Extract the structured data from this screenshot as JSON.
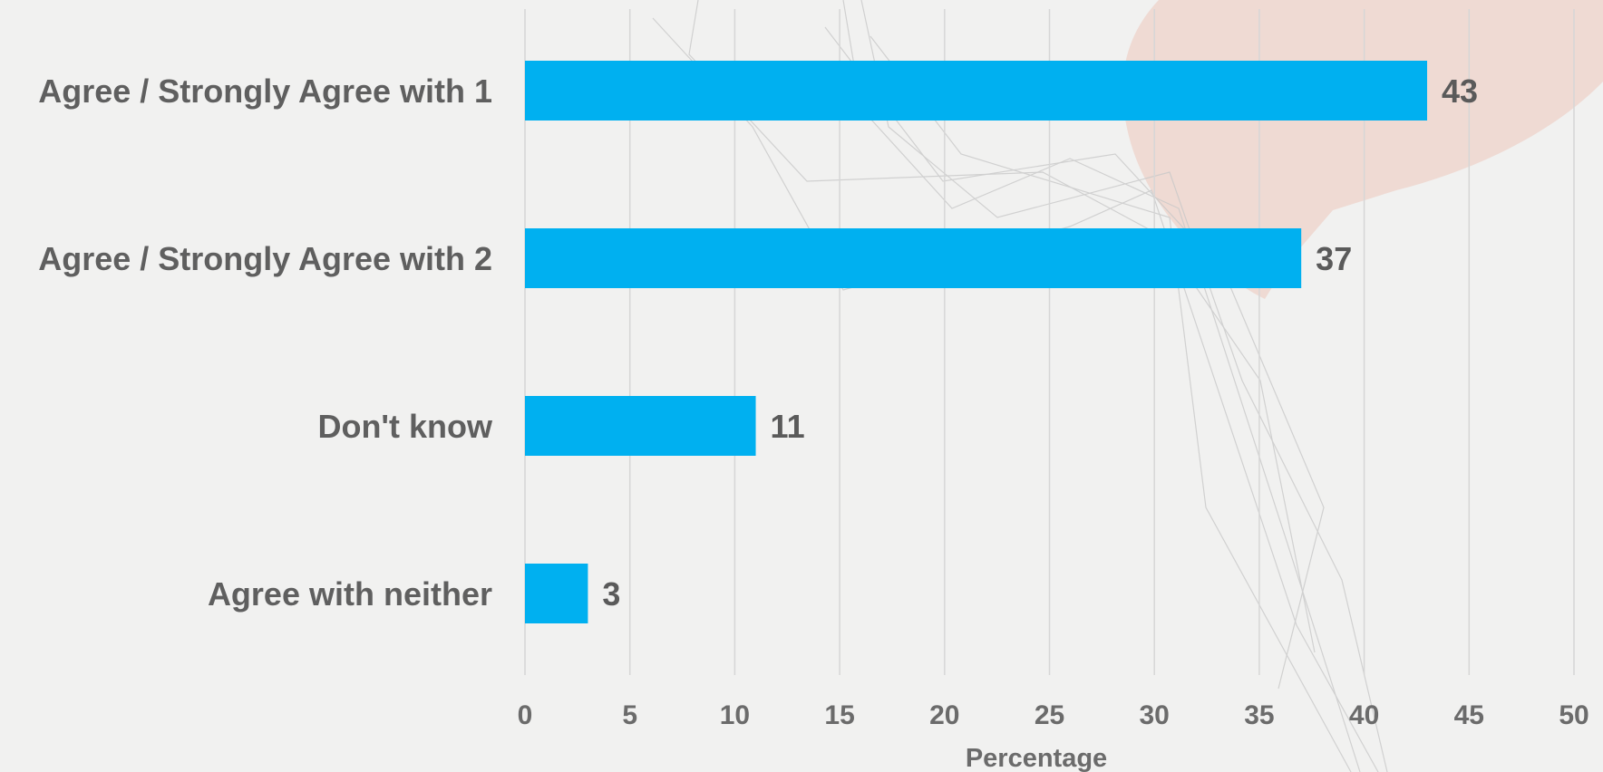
{
  "chart_data": {
    "type": "bar",
    "orientation": "horizontal",
    "categories": [
      "Agree / Strongly Agree with 1",
      "Agree / Strongly Agree with 2",
      "Don't know",
      "Agree with neither"
    ],
    "values": [
      43,
      37,
      11,
      3
    ],
    "xlabel": "Percentage",
    "ylabel": "",
    "xlim": [
      0,
      50
    ],
    "xticks": [
      "0",
      "5",
      "10",
      "15",
      "20",
      "25",
      "30",
      "35",
      "40",
      "45",
      "50"
    ],
    "grid": "vertical",
    "legend": "none",
    "bar_color": "#00b0f0"
  }
}
